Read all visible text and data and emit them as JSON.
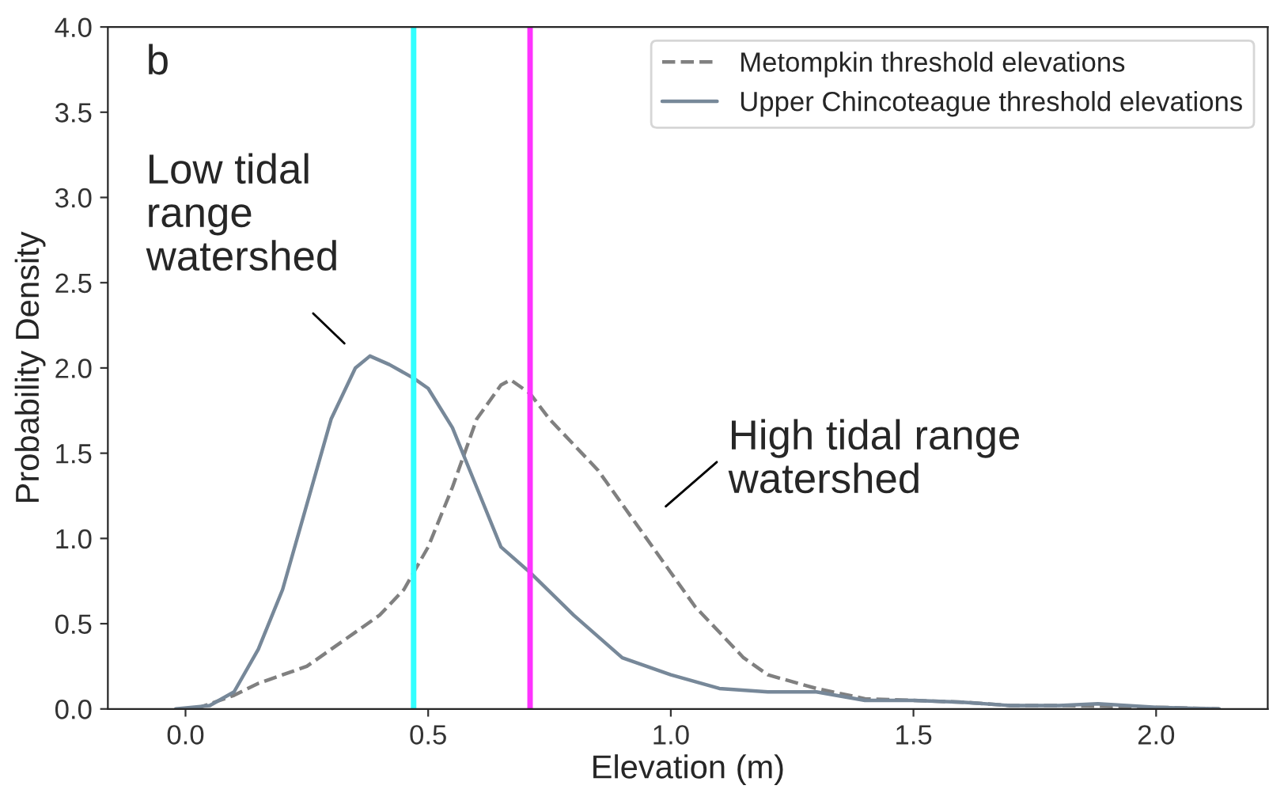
{
  "chart_data": {
    "type": "line",
    "xlabel": "Elevation (m)",
    "ylabel": "Probability Density",
    "xlim": [
      -0.16,
      2.23
    ],
    "xticks": [
      {
        "value": 0.0,
        "label": "0.0"
      },
      {
        "value": 0.5,
        "label": "0.5"
      },
      {
        "value": 1.0,
        "label": "1.0"
      },
      {
        "value": 1.5,
        "label": "1.5"
      },
      {
        "value": 2.0,
        "label": "2.0"
      }
    ],
    "ylim": [
      0.0,
      4.0
    ],
    "yticks": [
      {
        "value": 0.0,
        "label": "0.0"
      },
      {
        "value": 0.5,
        "label": "0.5"
      },
      {
        "value": 1.0,
        "label": "1.0"
      },
      {
        "value": 1.5,
        "label": "1.5"
      },
      {
        "value": 2.0,
        "label": "2.0"
      },
      {
        "value": 2.5,
        "label": "2.5"
      },
      {
        "value": 3.0,
        "label": "3.0"
      },
      {
        "value": 3.5,
        "label": "3.5"
      },
      {
        "value": 4.0,
        "label": "4.0"
      }
    ],
    "series": [
      {
        "name": "Metompkin threshold elevations",
        "color": "#808080",
        "line_style": "dashed",
        "x": [
          0.02,
          0.1,
          0.15,
          0.2,
          0.25,
          0.3,
          0.35,
          0.4,
          0.45,
          0.5,
          0.55,
          0.6,
          0.65,
          0.67,
          0.71,
          0.75,
          0.8,
          0.85,
          0.9,
          0.95,
          1.0,
          1.05,
          1.1,
          1.15,
          1.2,
          1.3,
          1.4,
          1.5,
          1.6,
          1.7,
          1.8,
          2.0,
          2.13
        ],
        "values": [
          0.0,
          0.08,
          0.15,
          0.2,
          0.25,
          0.35,
          0.45,
          0.55,
          0.7,
          0.95,
          1.3,
          1.7,
          1.9,
          1.93,
          1.85,
          1.7,
          1.55,
          1.4,
          1.2,
          1.0,
          0.8,
          0.6,
          0.45,
          0.3,
          0.2,
          0.12,
          0.06,
          0.05,
          0.04,
          0.02,
          0.02,
          0.01,
          0.0
        ]
      },
      {
        "name": "Upper Chincoteague threshold elevations",
        "color": "#778899",
        "line_style": "solid",
        "x": [
          -0.02,
          0.05,
          0.1,
          0.15,
          0.2,
          0.25,
          0.3,
          0.35,
          0.38,
          0.42,
          0.47,
          0.5,
          0.55,
          0.6,
          0.65,
          0.71,
          0.8,
          0.9,
          1.0,
          1.1,
          1.2,
          1.3,
          1.4,
          1.5,
          1.6,
          1.7,
          1.8,
          1.88,
          2.0,
          2.13
        ],
        "values": [
          0.0,
          0.02,
          0.1,
          0.35,
          0.7,
          1.2,
          1.7,
          2.0,
          2.07,
          2.02,
          1.94,
          1.88,
          1.65,
          1.3,
          0.95,
          0.8,
          0.55,
          0.3,
          0.2,
          0.12,
          0.1,
          0.1,
          0.05,
          0.05,
          0.04,
          0.02,
          0.02,
          0.03,
          0.01,
          0.0
        ]
      }
    ],
    "ref_lines": [
      {
        "axis": "x",
        "value": 0.47,
        "color": "#33ffff"
      },
      {
        "axis": "x",
        "value": 0.71,
        "color": "#ff33ff"
      }
    ],
    "annotations": [
      "b",
      "Low tidal\nrange\nwatershed",
      "High tidal range\nwatershed"
    ],
    "legend": "top right",
    "grid": false
  }
}
